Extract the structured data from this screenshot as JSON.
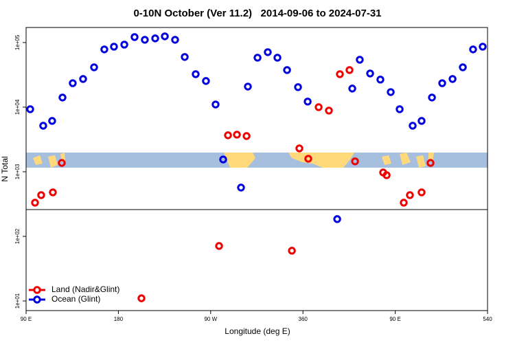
{
  "chart_data": {
    "type": "scatter",
    "title": "0-10N October (Ver 11.2)   2014-09-06 to 2024-07-31",
    "x_label": "Longitude (deg E)",
    "y_label": "N Total",
    "xlim": [
      90,
      540
    ],
    "ylim": [
      7.1,
      171000
    ],
    "log_y": true,
    "xticks": [
      {
        "value": 90,
        "label": "90 E"
      },
      180,
      {
        "value": 270,
        "label": "90 W"
      },
      360,
      {
        "value": 450,
        "label": "90 E"
      },
      540
    ],
    "yticks": [
      {
        "value": 10,
        "label": "1e+01"
      },
      {
        "value": 100,
        "label": "1e+02"
      },
      {
        "value": 1000,
        "label": "1e+03"
      },
      {
        "value": 10000,
        "label": "1e+04"
      },
      {
        "value": 100000,
        "label": "1e+05"
      }
    ],
    "hline": 260,
    "legend": "bottom-left",
    "series": [
      {
        "name": "Land (Nadir&Glint)",
        "color": "#ee0000",
        "x": [
          98.7,
          104.7,
          116.1,
          124.8,
          202.5,
          278.2,
          286.9,
          295.6,
          305,
          349.2,
          356.5,
          365.2,
          375.3,
          385.3,
          396,
          405.4,
          410.8,
          438.2,
          441.6,
          458.3,
          464.3,
          475.7,
          484.4
        ],
        "values": [
          332,
          435,
          480,
          1370,
          11,
          71,
          3670,
          3750,
          3570,
          60,
          2300,
          1590,
          10000,
          8850,
          32400,
          37500,
          1450,
          975,
          885,
          332,
          435,
          480,
          1370
        ]
      },
      {
        "name": "Ocean (Glint)",
        "color": "#0000dd",
        "x": [
          94,
          106.7,
          115.4,
          125.5,
          135.5,
          145.6,
          156.3,
          166.3,
          175.7,
          185.8,
          195.8,
          205.8,
          215.9,
          225.3,
          235.3,
          244.7,
          255.4,
          265.4,
          274.8,
          282.2,
          299.6,
          306.3,
          315.7,
          325.7,
          335.1,
          344.5,
          355.2,
          364.6,
          393.4,
          408.1,
          415.4,
          425.5,
          435.5,
          445.6,
          454.3,
          467,
          475.7,
          485.8,
          495.8,
          505.9,
          515.9,
          525.9,
          535.3
        ],
        "values": [
          9290,
          5160,
          6120,
          14100,
          23500,
          27300,
          41400,
          78300,
          86300,
          92900,
          121600,
          110300,
          115900,
          124700,
          110300,
          59800,
          32400,
          25400,
          11000,
          1550,
          569,
          20800,
          58300,
          71000,
          58300,
          37500,
          20400,
          12200,
          185,
          19400,
          54200,
          33200,
          26700,
          17100,
          9290,
          5160,
          6120,
          14100,
          23500,
          27300,
          41400,
          78300,
          86300
        ]
      }
    ]
  }
}
